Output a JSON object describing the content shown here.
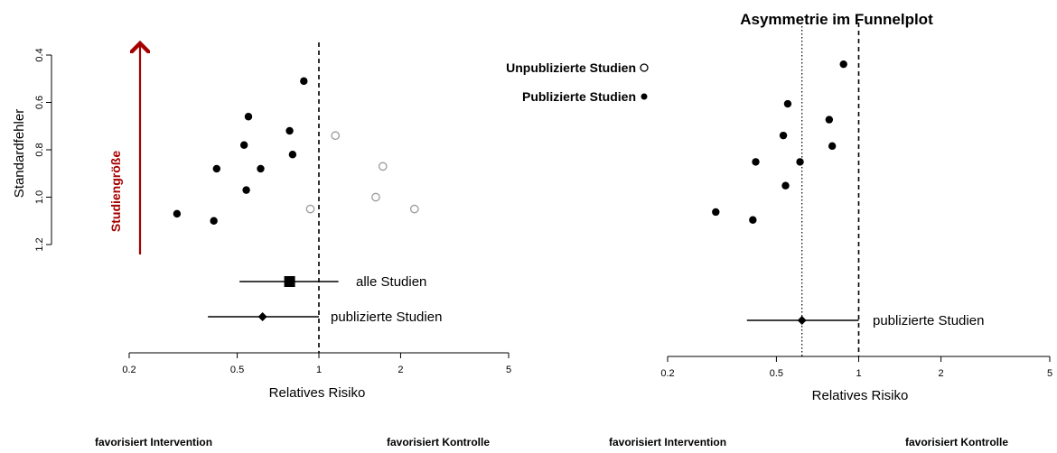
{
  "colors": {
    "accent": "#a50000",
    "point": "#000000",
    "unpublished_point": "#9a9a9a"
  },
  "labels": {
    "legend_unpublished": "Unpublizierte Studien",
    "legend_published": "Publizierte Studien",
    "studiengroesse": "Studiengröße"
  },
  "footer": {
    "left_intervention": "favorisiert Intervention",
    "left_kontrolle": "favorisiert Kontrolle",
    "right_intervention": "favorisiert Intervention",
    "right_kontrolle": "favorisiert Kontrolle"
  },
  "chart_data": [
    {
      "type": "scatter",
      "title": "",
      "xlabel": "Relatives Risiko",
      "ylabel": "Standardfehler",
      "x_scale": "log",
      "xlim": [
        0.2,
        5
      ],
      "x_ticks": [
        "0.2",
        "0.5",
        "1",
        "2",
        "5"
      ],
      "y_reversed": true,
      "ylim": [
        0.4,
        1.2
      ],
      "y_ticks": [
        "0.4",
        "0.6",
        "0.8",
        "1.0",
        "1.2"
      ],
      "reference_line": 1,
      "series": [
        {
          "name": "Publizierte Studien",
          "marker": "filled",
          "points": [
            {
              "x": 0.88,
              "y": 0.51
            },
            {
              "x": 0.55,
              "y": 0.66
            },
            {
              "x": 0.78,
              "y": 0.72
            },
            {
              "x": 0.53,
              "y": 0.78
            },
            {
              "x": 0.8,
              "y": 0.82
            },
            {
              "x": 0.42,
              "y": 0.88
            },
            {
              "x": 0.61,
              "y": 0.88
            },
            {
              "x": 0.54,
              "y": 0.97
            },
            {
              "x": 0.3,
              "y": 1.07
            },
            {
              "x": 0.41,
              "y": 1.1
            }
          ]
        },
        {
          "name": "Unpublizierte Studien",
          "marker": "open",
          "points": [
            {
              "x": 1.15,
              "y": 0.74
            },
            {
              "x": 1.72,
              "y": 0.87
            },
            {
              "x": 1.62,
              "y": 1.0
            },
            {
              "x": 0.93,
              "y": 1.05
            },
            {
              "x": 2.25,
              "y": 1.05
            }
          ]
        }
      ],
      "pooled_estimates": [
        {
          "label": "alle Studien",
          "estimate": 0.78,
          "ci": [
            0.51,
            1.18
          ],
          "marker": "square"
        },
        {
          "label": "publizierte Studien",
          "estimate": 0.62,
          "ci": [
            0.39,
            1.0
          ],
          "marker": "diamond"
        }
      ]
    },
    {
      "type": "scatter",
      "title": "Asymmetrie im Funnelplot",
      "xlabel": "Relatives Risiko",
      "ylabel": "",
      "x_scale": "log",
      "xlim": [
        0.2,
        5
      ],
      "x_ticks": [
        "0.2",
        "0.5",
        "1",
        "2",
        "5"
      ],
      "y_reversed": true,
      "ylim": [
        0.4,
        1.2
      ],
      "reference_line": 1,
      "pooled_line": 0.62,
      "series": [
        {
          "name": "Publizierte Studien",
          "marker": "filled",
          "points": [
            {
              "x": 0.88,
              "y": 0.51
            },
            {
              "x": 0.55,
              "y": 0.66
            },
            {
              "x": 0.78,
              "y": 0.72
            },
            {
              "x": 0.53,
              "y": 0.78
            },
            {
              "x": 0.8,
              "y": 0.82
            },
            {
              "x": 0.42,
              "y": 0.88
            },
            {
              "x": 0.61,
              "y": 0.88
            },
            {
              "x": 0.54,
              "y": 0.97
            },
            {
              "x": 0.3,
              "y": 1.07
            },
            {
              "x": 0.41,
              "y": 1.1
            }
          ]
        }
      ],
      "pooled_estimates": [
        {
          "label": "publizierte Studien",
          "estimate": 0.62,
          "ci": [
            0.39,
            1.0
          ],
          "marker": "diamond"
        }
      ]
    }
  ]
}
